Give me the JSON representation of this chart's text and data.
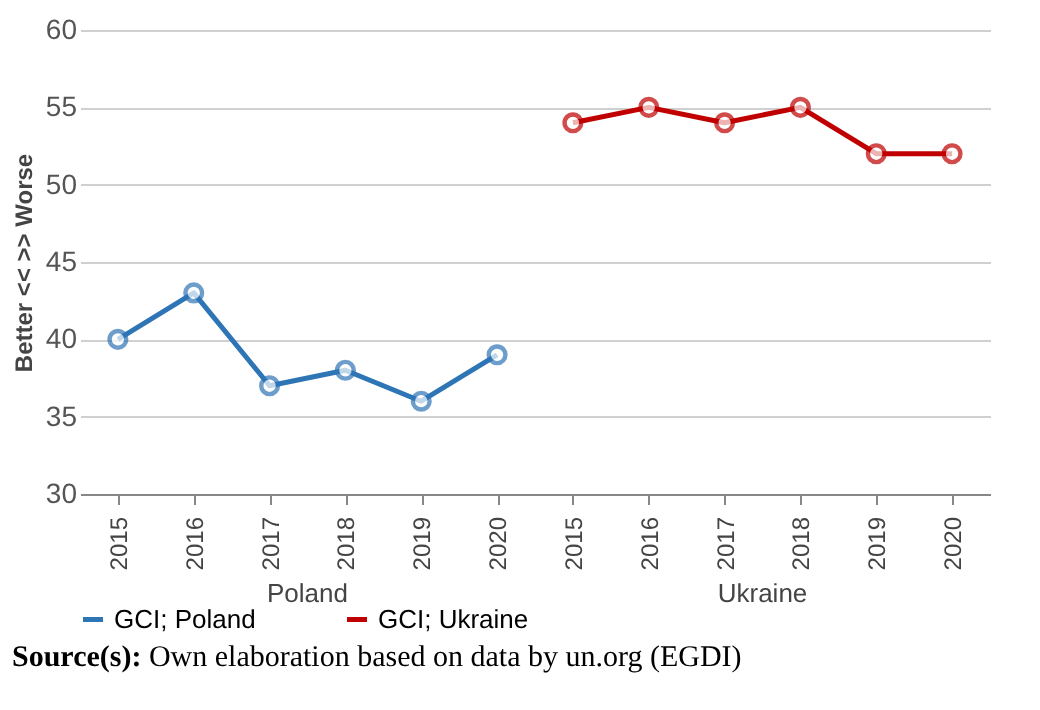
{
  "chart_data": {
    "type": "line",
    "ylabel": "Better <<                 >> Worse",
    "categories": [
      "2015",
      "2016",
      "2017",
      "2018",
      "2019",
      "2020",
      "2015",
      "2016",
      "2017",
      "2018",
      "2019",
      "2020"
    ],
    "series": [
      {
        "name": "GCI; Poland",
        "color": "#2e75b6",
        "values": [
          40,
          43,
          37,
          38,
          36,
          39,
          null,
          null,
          null,
          null,
          null,
          null
        ]
      },
      {
        "name": "GCI; Ukraine",
        "color": "#c00000",
        "values": [
          null,
          null,
          null,
          null,
          null,
          null,
          54,
          55,
          54,
          55,
          52,
          52
        ]
      }
    ],
    "ylim": [
      30,
      60
    ],
    "yticks": [
      30,
      35,
      40,
      45,
      50,
      55,
      60
    ],
    "grid": "y",
    "legend": "bottom",
    "marker": "circle",
    "line_style": "solid",
    "annotations": [
      "Poland",
      "Ukraine",
      "Source(s): Own elaboration based on data by un.org (EGDI)"
    ]
  }
}
